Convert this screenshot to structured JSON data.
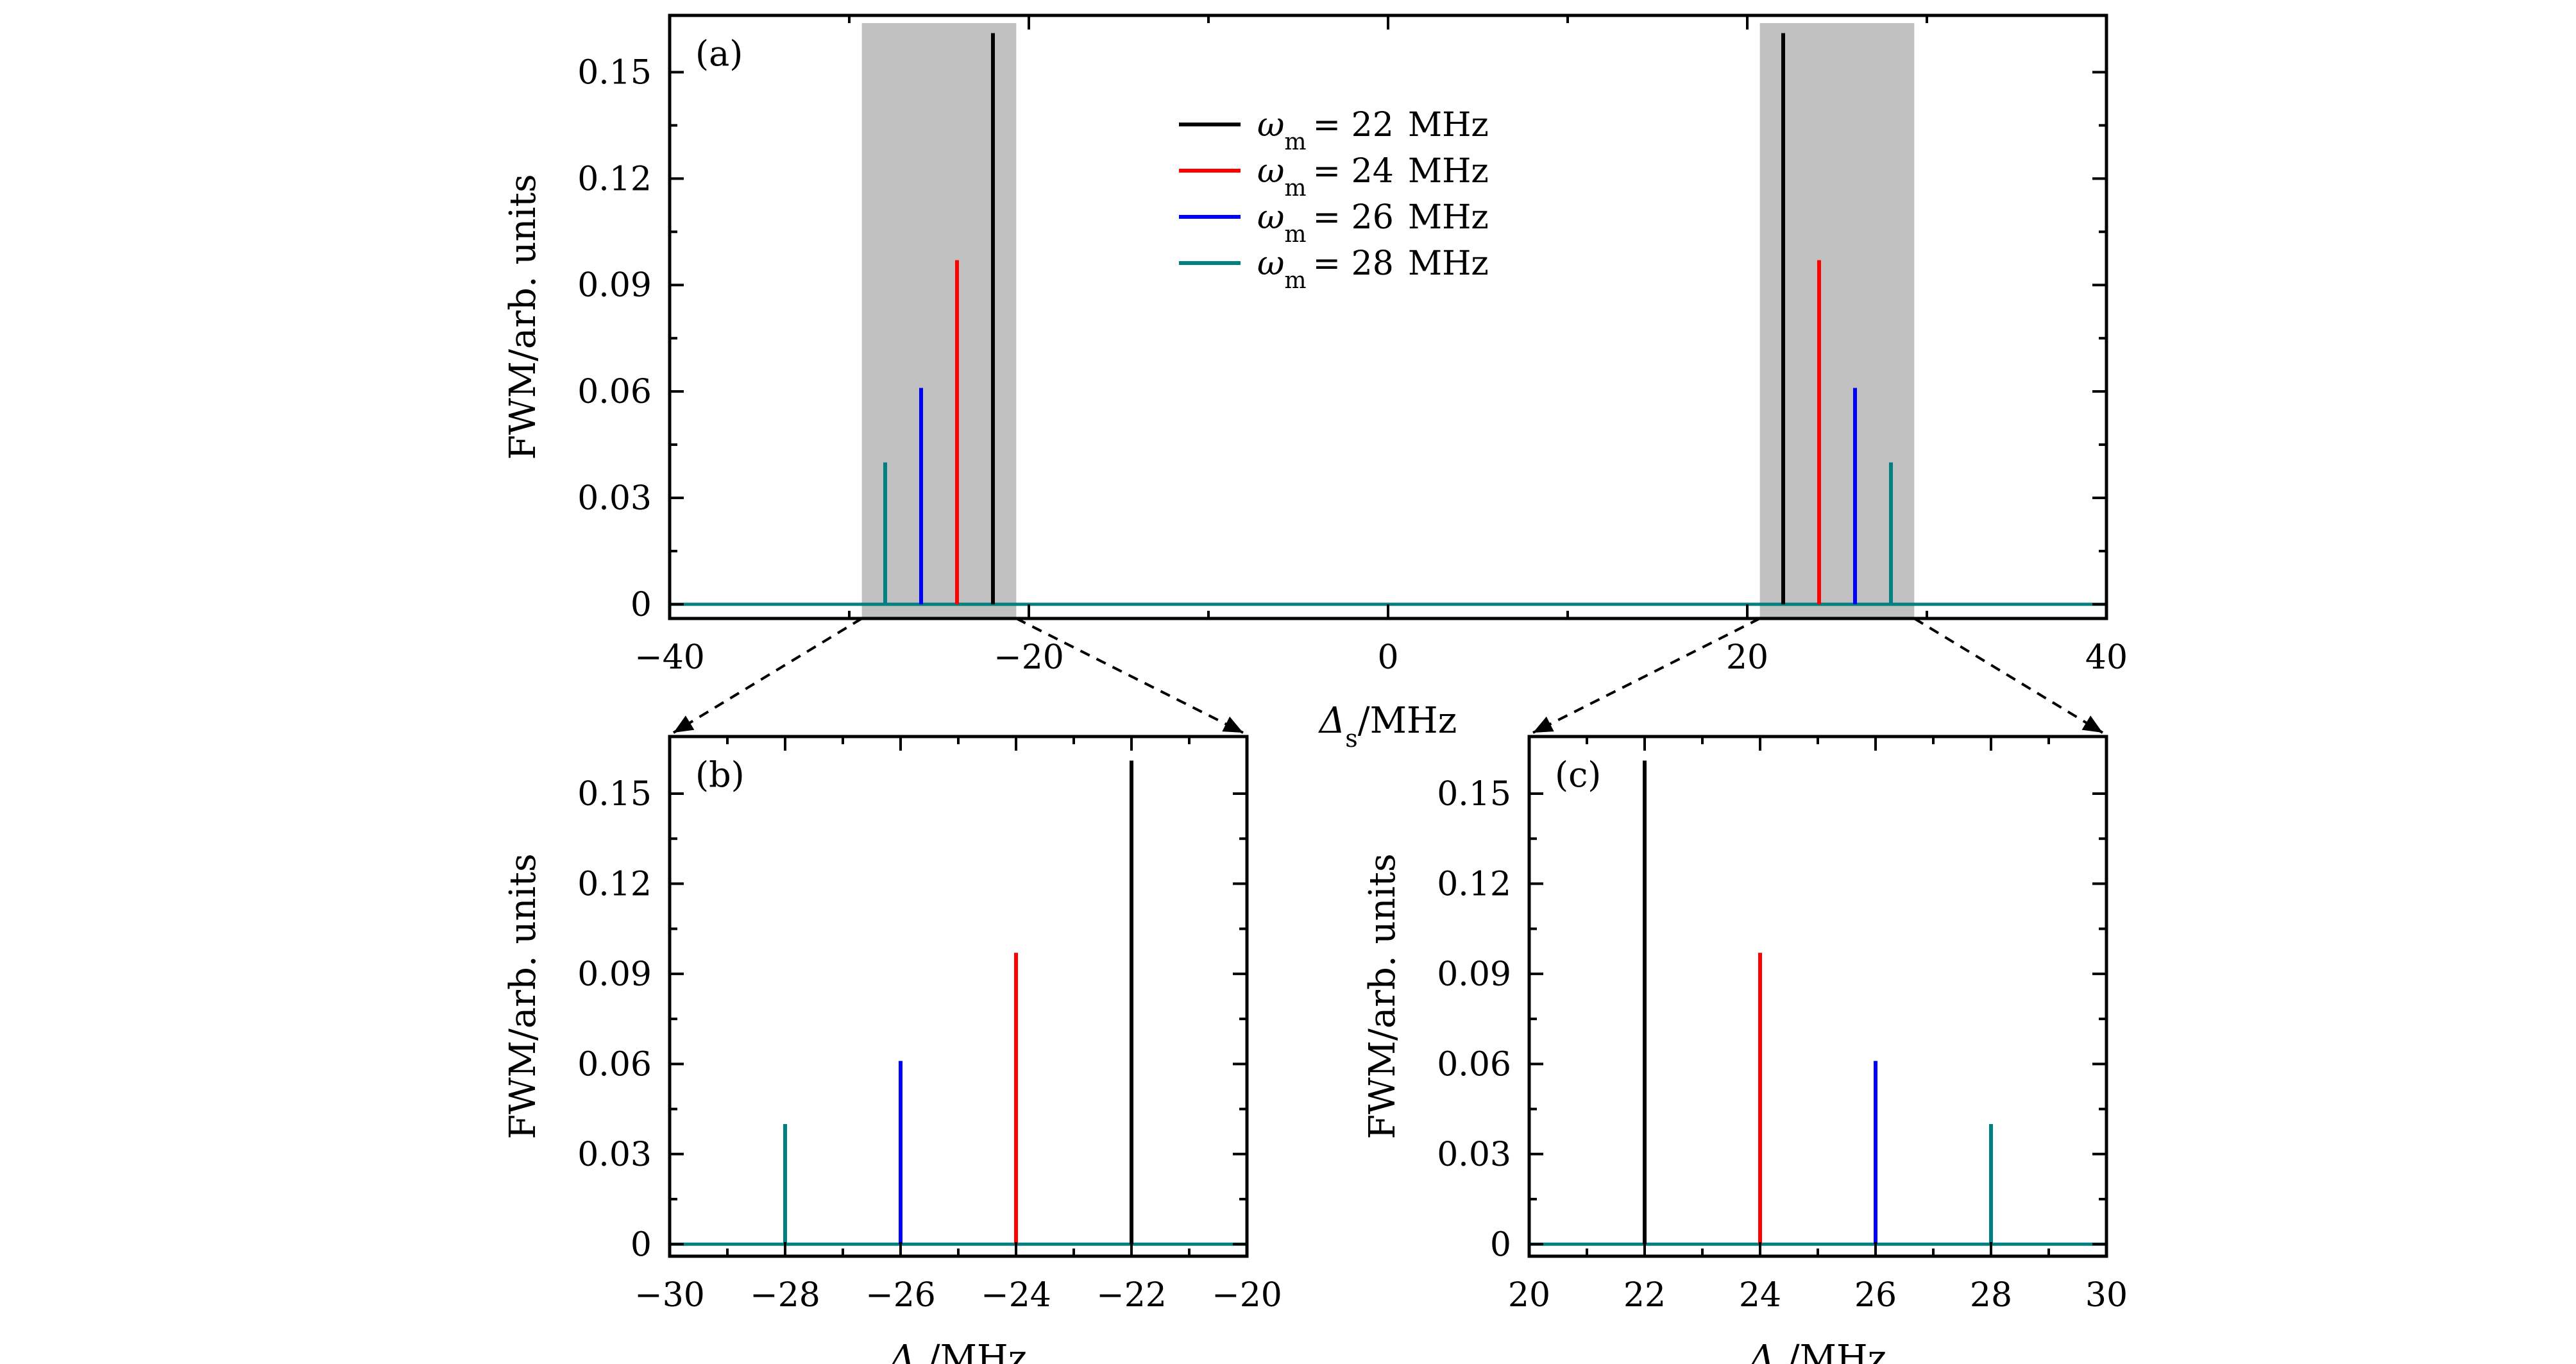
{
  "colors": {
    "black": "#000000",
    "red": "#ff0000",
    "blue": "#0000ff",
    "teal": "#008080",
    "highlight": "#c0c0c0"
  },
  "legend": {
    "symbol": "ω",
    "subscript": "m",
    "entries": [
      {
        "value": "= 22",
        "unit": "MHz",
        "color": "#000000"
      },
      {
        "value": "= 24",
        "unit": "MHz",
        "color": "#ff0000"
      },
      {
        "value": "= 26",
        "unit": "MHz",
        "color": "#0000ff"
      },
      {
        "value": "= 28",
        "unit": "MHz",
        "color": "#008080"
      }
    ]
  },
  "chart_data": [
    {
      "id": "a",
      "type": "line",
      "panel_label": "(a)",
      "ylabel": "FWM/arb. units",
      "xlabel": {
        "main": "Δ",
        "sub": "s",
        "rest": "/MHz"
      },
      "xlim": [
        -40,
        40
      ],
      "ylim": [
        -0.004,
        0.166
      ],
      "xticks": [
        -40,
        -20,
        0,
        20,
        40
      ],
      "xtick_labels": [
        "−40",
        "−20",
        "0",
        "20",
        "40"
      ],
      "yticks": [
        0,
        0.03,
        0.06,
        0.09,
        0.12,
        0.15
      ],
      "ytick_labels": [
        "0",
        "0.03",
        "0.06",
        "0.09",
        "0.12",
        "0.15"
      ],
      "highlight_regions": [
        [
          -29.3,
          -20.7
        ],
        [
          20.7,
          29.3
        ]
      ],
      "baseline": 0,
      "series": [
        {
          "name": "ωm = 22 MHz",
          "color": "#000000",
          "peaks": [
            {
              "x": -22,
              "y": 0.161
            },
            {
              "x": 22,
              "y": 0.161
            }
          ]
        },
        {
          "name": "ωm = 24 MHz",
          "color": "#ff0000",
          "peaks": [
            {
              "x": -24,
              "y": 0.097
            },
            {
              "x": 24,
              "y": 0.097
            }
          ]
        },
        {
          "name": "ωm = 26 MHz",
          "color": "#0000ff",
          "peaks": [
            {
              "x": -26,
              "y": 0.061
            },
            {
              "x": 26,
              "y": 0.061
            }
          ]
        },
        {
          "name": "ωm = 28 MHz",
          "color": "#008080",
          "peaks": [
            {
              "x": -28,
              "y": 0.04
            },
            {
              "x": 28,
              "y": 0.04
            }
          ]
        }
      ]
    },
    {
      "id": "b",
      "type": "line",
      "panel_label": "(b)",
      "ylabel": "FWM/arb. units",
      "xlabel": {
        "main": "Δ",
        "sub": "s",
        "rest": "/MHz"
      },
      "xlim": [
        -30,
        -20
      ],
      "ylim": [
        -0.004,
        0.169
      ],
      "xticks": [
        -30,
        -28,
        -26,
        -24,
        -22,
        -20
      ],
      "xtick_labels": [
        "−30",
        "−28",
        "−26",
        "−24",
        "−22",
        "−20"
      ],
      "yticks": [
        0,
        0.03,
        0.06,
        0.09,
        0.12,
        0.15
      ],
      "ytick_labels": [
        "0",
        "0.03",
        "0.06",
        "0.09",
        "0.12",
        "0.15"
      ],
      "baseline": 0,
      "series": [
        {
          "name": "ωm = 22 MHz",
          "color": "#000000",
          "peaks": [
            {
              "x": -22,
              "y": 0.161
            }
          ]
        },
        {
          "name": "ωm = 24 MHz",
          "color": "#ff0000",
          "peaks": [
            {
              "x": -24,
              "y": 0.097
            }
          ]
        },
        {
          "name": "ωm = 26 MHz",
          "color": "#0000ff",
          "peaks": [
            {
              "x": -26,
              "y": 0.061
            }
          ]
        },
        {
          "name": "ωm = 28 MHz",
          "color": "#008080",
          "peaks": [
            {
              "x": -28,
              "y": 0.04
            }
          ]
        }
      ]
    },
    {
      "id": "c",
      "type": "line",
      "panel_label": "(c)",
      "ylabel": "FWM/arb. units",
      "xlabel": {
        "main": "Δ",
        "sub": "s",
        "rest": "/MHz"
      },
      "xlim": [
        20,
        30
      ],
      "ylim": [
        -0.004,
        0.169
      ],
      "xticks": [
        20,
        22,
        24,
        26,
        28,
        30
      ],
      "xtick_labels": [
        "20",
        "22",
        "24",
        "26",
        "28",
        "30"
      ],
      "yticks": [
        0,
        0.03,
        0.06,
        0.09,
        0.12,
        0.15
      ],
      "ytick_labels": [
        "0",
        "0.03",
        "0.06",
        "0.09",
        "0.12",
        "0.15"
      ],
      "baseline": 0,
      "series": [
        {
          "name": "ωm = 22 MHz",
          "color": "#000000",
          "peaks": [
            {
              "x": 22,
              "y": 0.161
            }
          ]
        },
        {
          "name": "ωm = 24 MHz",
          "color": "#ff0000",
          "peaks": [
            {
              "x": 24,
              "y": 0.097
            }
          ]
        },
        {
          "name": "ωm = 26 MHz",
          "color": "#0000ff",
          "peaks": [
            {
              "x": 26,
              "y": 0.061
            }
          ]
        },
        {
          "name": "ωm = 28 MHz",
          "color": "#008080",
          "peaks": [
            {
              "x": 28,
              "y": 0.04
            }
          ]
        }
      ]
    }
  ]
}
